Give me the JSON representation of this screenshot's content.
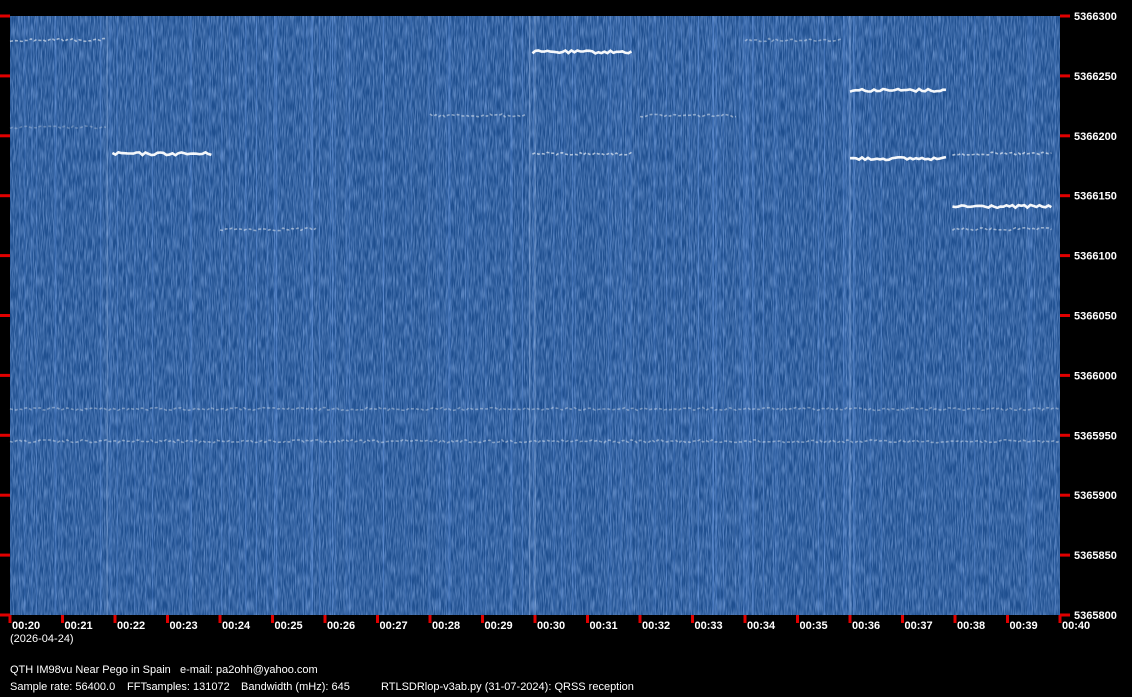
{
  "chart_data": {
    "type": "heatmap",
    "description_free": true,
    "x_ticks": [
      "00:20",
      "00:21",
      "00:22",
      "00:23",
      "00:24",
      "00:25",
      "00:26",
      "00:27",
      "00:28",
      "00:29",
      "00:30",
      "00:31",
      "00:32",
      "00:33",
      "00:34",
      "00:35",
      "00:36",
      "00:37",
      "00:38",
      "00:39",
      "00:40"
    ],
    "y_ticks": [
      5366300,
      5366250,
      5366200,
      5366150,
      5366100,
      5366050,
      5366000,
      5365950,
      5365900,
      5365850,
      5365800
    ],
    "ylim": [
      5365800,
      5366300
    ],
    "xlim_minutes": [
      0,
      20
    ],
    "date_label": "(2026-04-24)",
    "background_color": "#1f4f8f",
    "signal_color": "#ffffff",
    "tick_color": "#e00000",
    "traces": [
      {
        "x0": 0.0,
        "x1": 1.85,
        "y": 5366280,
        "intensity": 0.55
      },
      {
        "x0": 0.0,
        "x1": 1.85,
        "y": 5366207,
        "intensity": 0.25
      },
      {
        "x0": 1.95,
        "x1": 3.85,
        "y": 5366185,
        "intensity": 0.95
      },
      {
        "x0": 4.0,
        "x1": 5.85,
        "y": 5366122,
        "intensity": 0.45
      },
      {
        "x0": 8.0,
        "x1": 9.85,
        "y": 5366217,
        "intensity": 0.45
      },
      {
        "x0": 9.95,
        "x1": 11.85,
        "y": 5366270,
        "intensity": 0.95
      },
      {
        "x0": 9.95,
        "x1": 11.85,
        "y": 5366185,
        "intensity": 0.6
      },
      {
        "x0": 12.0,
        "x1": 13.85,
        "y": 5366217,
        "intensity": 0.45
      },
      {
        "x0": 14.0,
        "x1": 15.85,
        "y": 5366280,
        "intensity": 0.4
      },
      {
        "x0": 16.0,
        "x1": 17.85,
        "y": 5366238,
        "intensity": 0.95
      },
      {
        "x0": 16.0,
        "x1": 17.85,
        "y": 5366181,
        "intensity": 0.95
      },
      {
        "x0": 17.95,
        "x1": 19.85,
        "y": 5366185,
        "intensity": 0.6
      },
      {
        "x0": 17.95,
        "x1": 19.85,
        "y": 5366141,
        "intensity": 0.95
      },
      {
        "x0": 17.95,
        "x1": 19.85,
        "y": 5366122,
        "intensity": 0.5
      },
      {
        "x0": 0.0,
        "x1": 20.0,
        "y": 5365972,
        "intensity": 0.35
      },
      {
        "x0": 0.0,
        "x1": 20.0,
        "y": 5365945,
        "intensity": 0.4
      }
    ]
  },
  "footer": {
    "qth_line": "QTH IM98vu Near Pego in Spain   e-mail: pa2ohh@yahoo.com",
    "sample_rate": "Sample rate: 56400.0",
    "fft_samples": "FFTsamples: 131072",
    "bandwidth": "Bandwidth (mHz): 645",
    "program": "RTLSDRlop-v3ab.py (31-07-2024): QRSS reception"
  }
}
